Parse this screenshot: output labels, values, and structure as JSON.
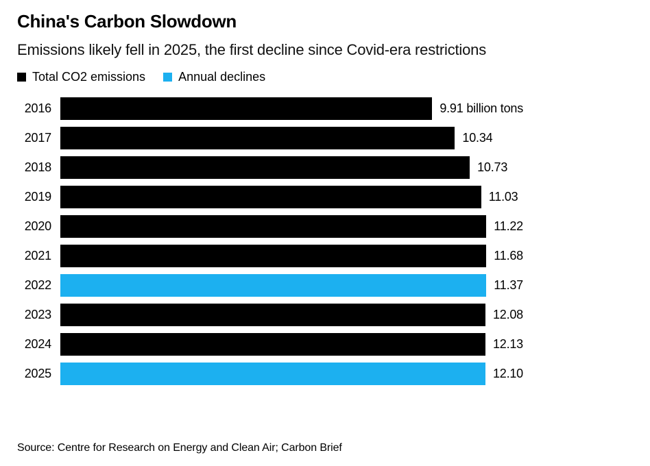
{
  "header": {
    "title": "China's Carbon Slowdown",
    "subtitle": "Emissions likely fell in 2025, the first decline since Covid-era restrictions"
  },
  "legend": {
    "items": [
      {
        "label": "Total CO2 emissions",
        "color": "#000000"
      },
      {
        "label": "Annual declines",
        "color": "#1CB0F0"
      }
    ]
  },
  "colors": {
    "bar_default": "#000000",
    "bar_highlight": "#1CB0F0",
    "background": "#FFFFFF",
    "text": "#000000"
  },
  "chart_data": {
    "type": "bar",
    "orientation": "horizontal",
    "title": "China's Carbon Slowdown",
    "subtitle": "Emissions likely fell in 2025, the first decline since Covid-era restrictions",
    "xlabel": "",
    "ylabel": "",
    "unit": "billion tons",
    "categories": [
      "2016",
      "2017",
      "2018",
      "2019",
      "2020",
      "2021",
      "2022",
      "2023",
      "2024",
      "2025"
    ],
    "values": [
      9.91,
      10.34,
      10.73,
      11.03,
      11.22,
      11.68,
      11.37,
      12.08,
      12.13,
      12.1
    ],
    "value_labels": [
      "9.91 billion tons",
      "10.34",
      "10.73",
      "11.03",
      "11.22",
      "11.68",
      "11.37",
      "12.08",
      "12.13",
      "12.10"
    ],
    "highlight_categories": [
      "2022",
      "2025"
    ],
    "series_legend": [
      "Total CO2 emissions",
      "Annual declines"
    ],
    "axis_max": 12.13,
    "grid": false,
    "legend_position": "top"
  },
  "footer": {
    "source": "Source: Centre for Research on Energy and Clean Air; Carbon Brief"
  }
}
